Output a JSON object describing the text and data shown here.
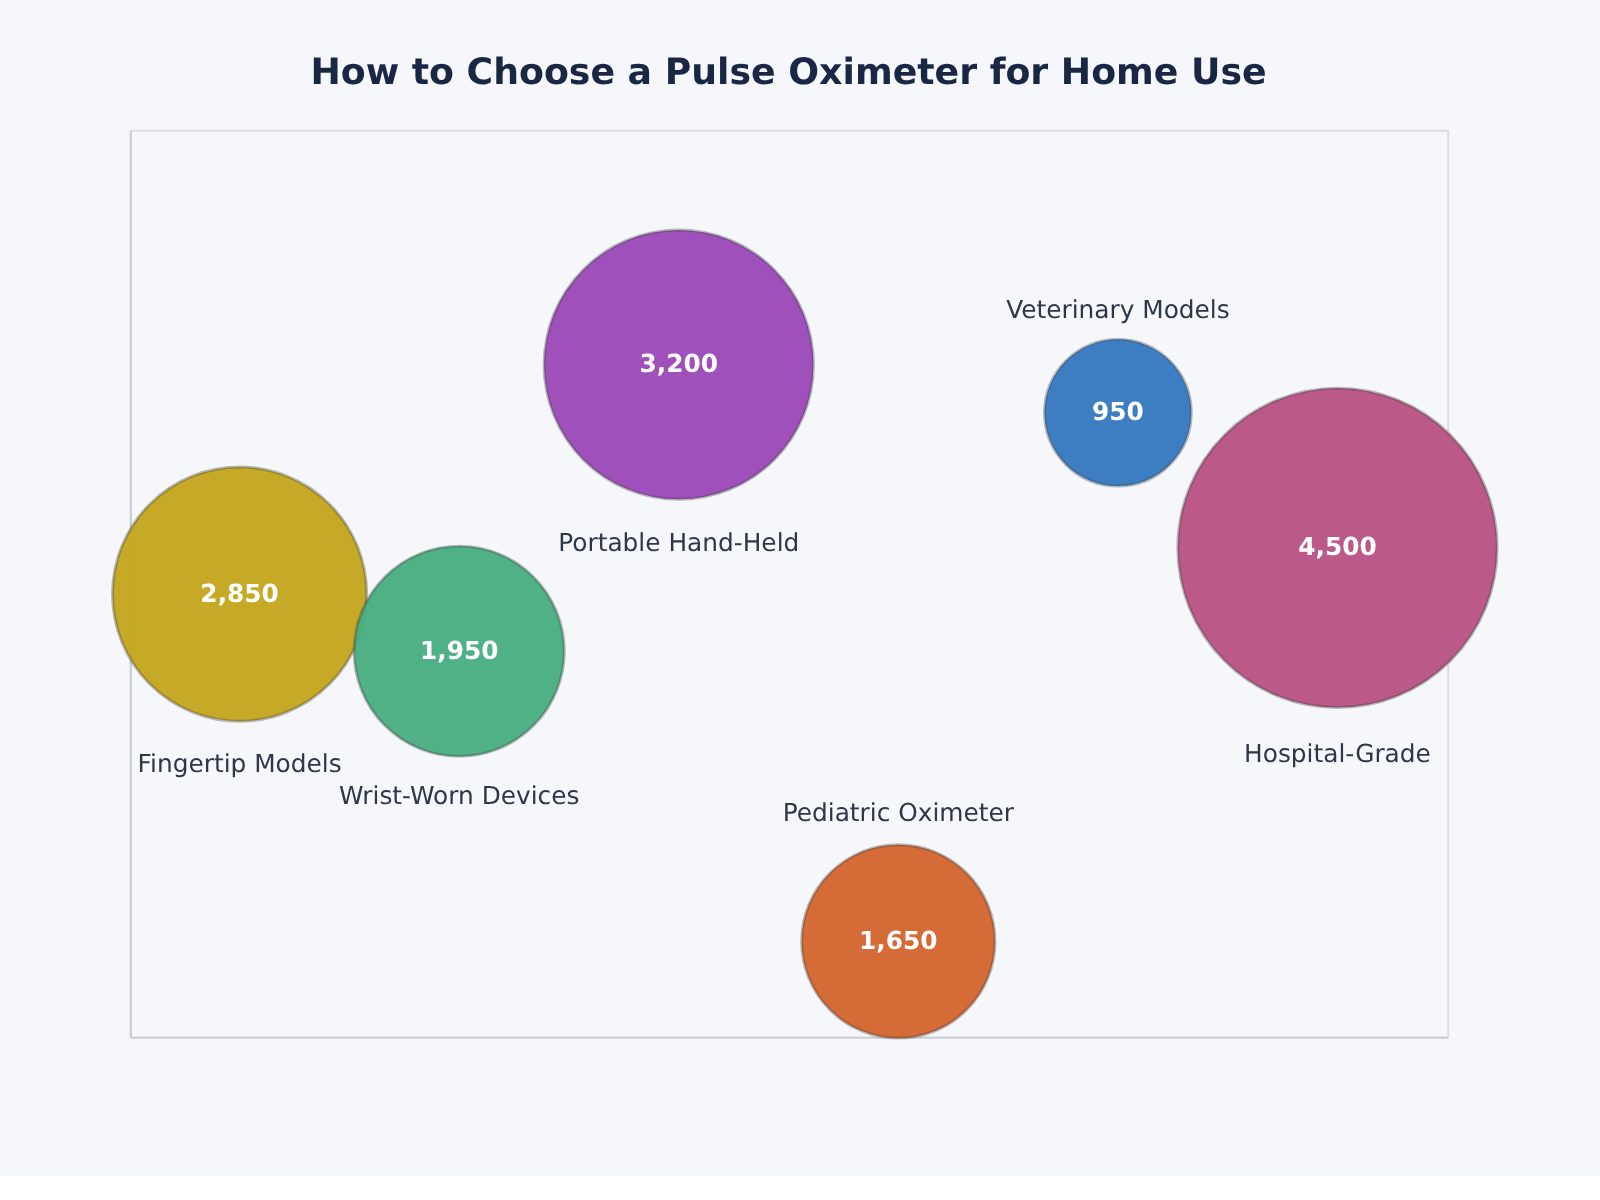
{
  "chart_data": {
    "type": "other",
    "title": "How to Choose a Pulse Oximeter for Home Use",
    "categories": [
      "Fingertip Models",
      "Wrist-Worn Devices",
      "Portable Hand-Held",
      "Pediatric Oximeter",
      "Veterinary Models",
      "Hospital-Grade"
    ],
    "values": [
      2850,
      1950,
      3200,
      1650,
      950,
      4500
    ],
    "colors": [
      "#c4a51c",
      "#48ae80",
      "#9b48b8",
      "#d4642c",
      "#3478c0",
      "#b85282"
    ],
    "value_labels": [
      "2,850",
      "1,950",
      "3,200",
      "1,650",
      "950",
      "4,500"
    ]
  }
}
